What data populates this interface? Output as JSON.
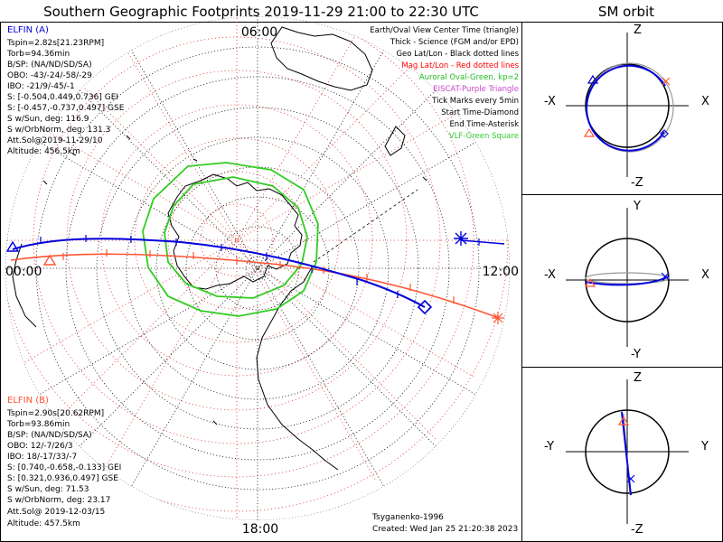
{
  "title": "Southern Geographic Footprints 2019-11-29 21:00 to 22:30 UTC",
  "orbit_title": "SM orbit",
  "hour_labels": {
    "top": "06:00",
    "left": "00:00",
    "right": "12:00",
    "bottom": "18:00"
  },
  "elfin_a": {
    "name": "ELFIN (A)",
    "lines": [
      "Tspin=2.82s[21.23RPM]",
      "Torb=94.36min",
      "B/SP: (NA/ND/SD/SA)",
      "OBO: -43/-24/-58/-29",
      "IBO: -21/9/-45/-1",
      "S: [-0.504,0.449,0.736] GEI",
      "S: [-0.457,-0.737,0.497] GSE",
      "S w/Sun, deg: 116.9",
      "S w/OrbNorm, deg: 131.3",
      "Att.Sol@2019-11-29/10",
      "Altitude: 456.5km"
    ]
  },
  "elfin_b": {
    "name": "ELFIN (B)",
    "lines": [
      "Tspin=2.90s[20.62RPM]",
      "Torb=93.86min",
      "B/SP: (NA/ND/SD/SA)",
      "OBO: 12/-7/26/3",
      "IBO: 18/-17/33/-7",
      "S: [0.740,-0.658,-0.133] GEI",
      "S: [0.321,0.936,0.497] GSE",
      "S w/Sun, deg: 71.53",
      "S w/OrbNorm, deg: 23.17",
      "Att.Sol@ 2019-12-03/15",
      "Altitude: 457.5km"
    ]
  },
  "legend": [
    {
      "text": "Earth/Oval View Center Time (triangle)",
      "color": "#000000"
    },
    {
      "text": "Thick - Science (FGM and/or EPD)",
      "color": "#000000"
    },
    {
      "text": "Geo Lat/Lon - Black dotted lines",
      "color": "#000000"
    },
    {
      "text": "Mag Lat/Lon - Red dotted lines",
      "color": "#ff0000"
    },
    {
      "text": "Auroral Oval-Green, kp=2",
      "color": "#22bb22"
    },
    {
      "text": "EISCAT-Purple Triangle",
      "color": "#cc44cc"
    },
    {
      "text": "Tick Marks every 5min",
      "color": "#000000"
    },
    {
      "text": "Start Time-Diamond",
      "color": "#000000"
    },
    {
      "text": "End Time-Asterisk",
      "color": "#000000"
    },
    {
      "text": "VLF-Green Square",
      "color": "#33cc33"
    }
  ],
  "footer": {
    "model": "Tsyganenko-1996",
    "created": "Created: Wed Jan 25 21:20:38 2023"
  },
  "orbit_panels": [
    {
      "top": "Z",
      "bottom": "-Z",
      "left": "-X",
      "right": "X"
    },
    {
      "top": "Y",
      "bottom": "-Y",
      "left": "-X",
      "right": "X"
    },
    {
      "top": "Z",
      "bottom": "-Z",
      "left": "-Y",
      "right": "Y"
    }
  ],
  "colors": {
    "elfin_a": "#0000dd",
    "elfin_b": "#ff5533",
    "auroral_oval": "#33cc22",
    "mag_grid": "#dd2222",
    "geo_grid": "#000000"
  }
}
